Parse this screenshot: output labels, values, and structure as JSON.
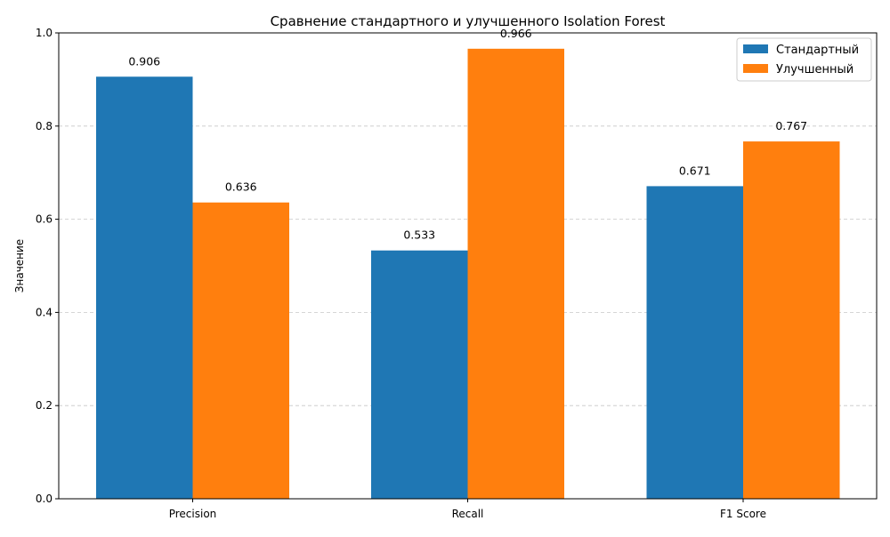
{
  "chart_data": {
    "type": "bar",
    "title": "Сравнение стандартного и улучшенного Isolation Forest",
    "xlabel": "",
    "ylabel": "Значение",
    "categories": [
      "Precision",
      "Recall",
      "F1 Score"
    ],
    "series": [
      {
        "name": "Стандартный",
        "values": [
          0.906,
          0.533,
          0.671
        ],
        "value_labels": [
          "0.906",
          "0.533",
          "0.671"
        ],
        "color": "#1f77b4"
      },
      {
        "name": "Улучшенный",
        "values": [
          0.636,
          0.966,
          0.767
        ],
        "value_labels": [
          "0.636",
          "0.966",
          "0.767"
        ],
        "color": "#ff7f0e"
      }
    ],
    "ylim": [
      0,
      1.0
    ],
    "yticks": [
      "0.0",
      "0.2",
      "0.4",
      "0.6",
      "0.8",
      "1.0"
    ],
    "grid": "y-dashed",
    "legend_position": "top-right"
  }
}
